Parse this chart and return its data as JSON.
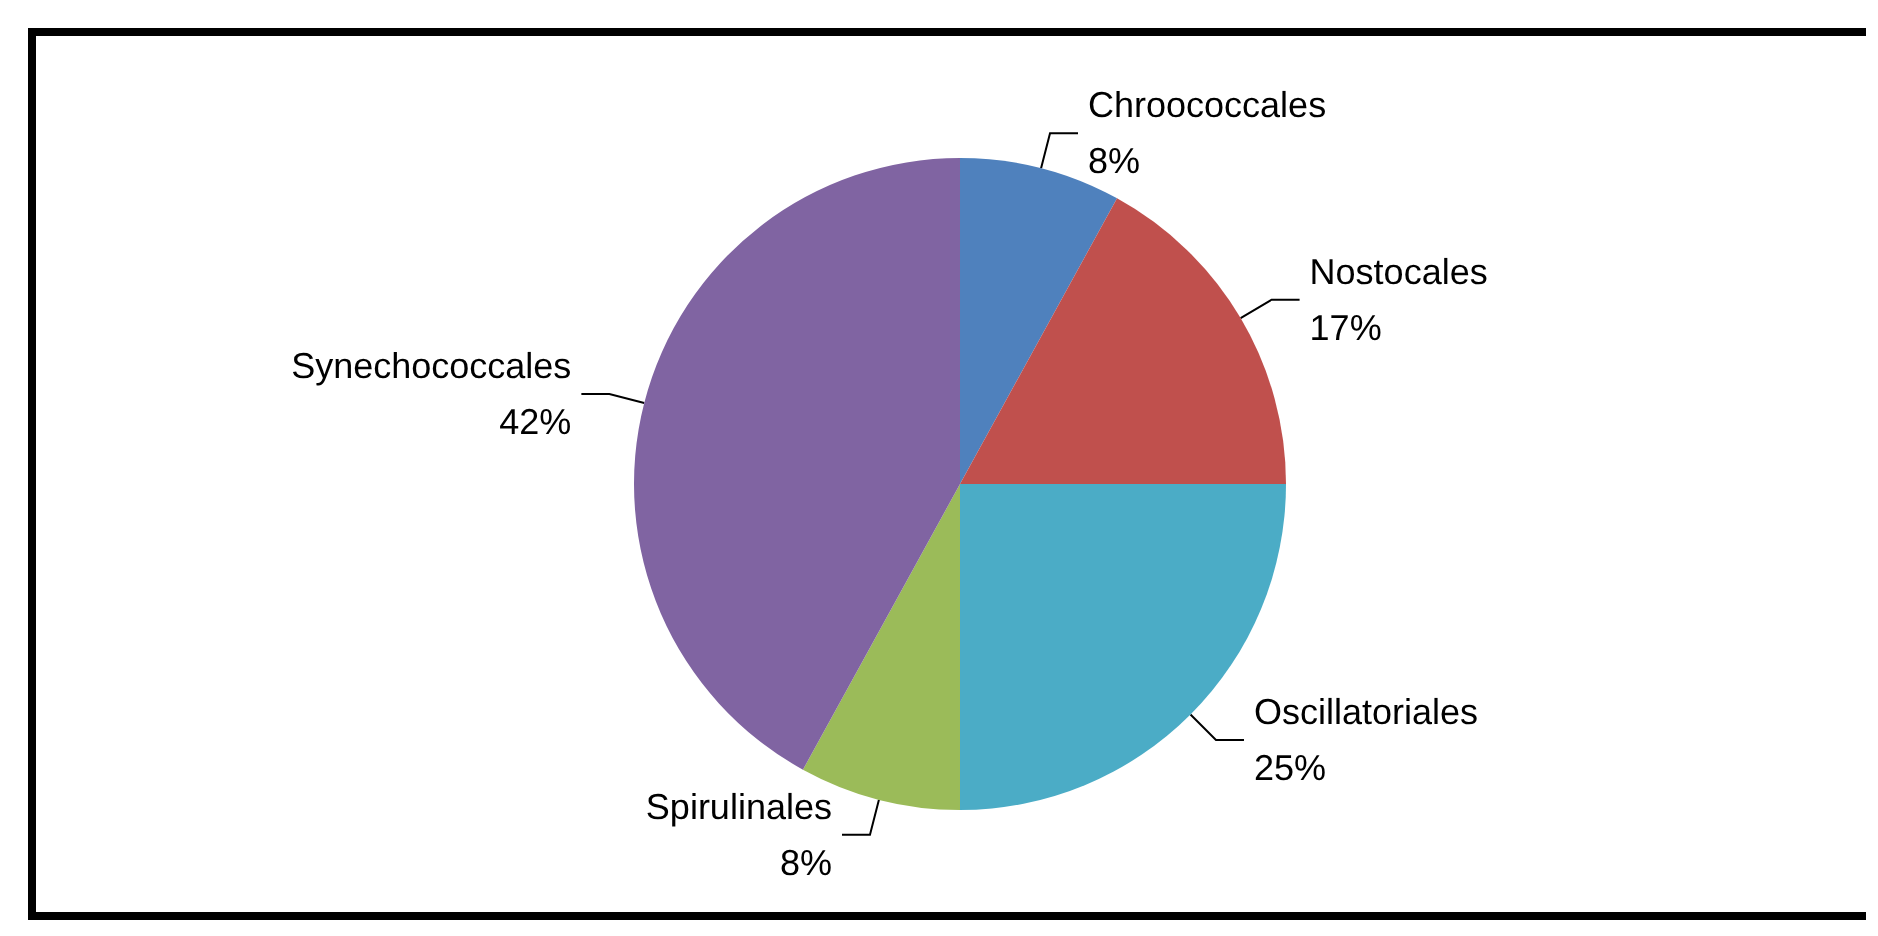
{
  "chart_data": {
    "type": "pie",
    "categories": [
      "Chroococcales",
      "Nostocales",
      "Oscillatoriales",
      "Spirulinales",
      "Synechococcales"
    ],
    "values": [
      8,
      17,
      25,
      8,
      42
    ],
    "value_labels": [
      "8%",
      "17%",
      "25%",
      "8%",
      "42%"
    ],
    "colors": [
      "#4f81bd",
      "#c0504d",
      "#4bacc6",
      "#9bbb59",
      "#8064a2"
    ],
    "legend": false
  }
}
